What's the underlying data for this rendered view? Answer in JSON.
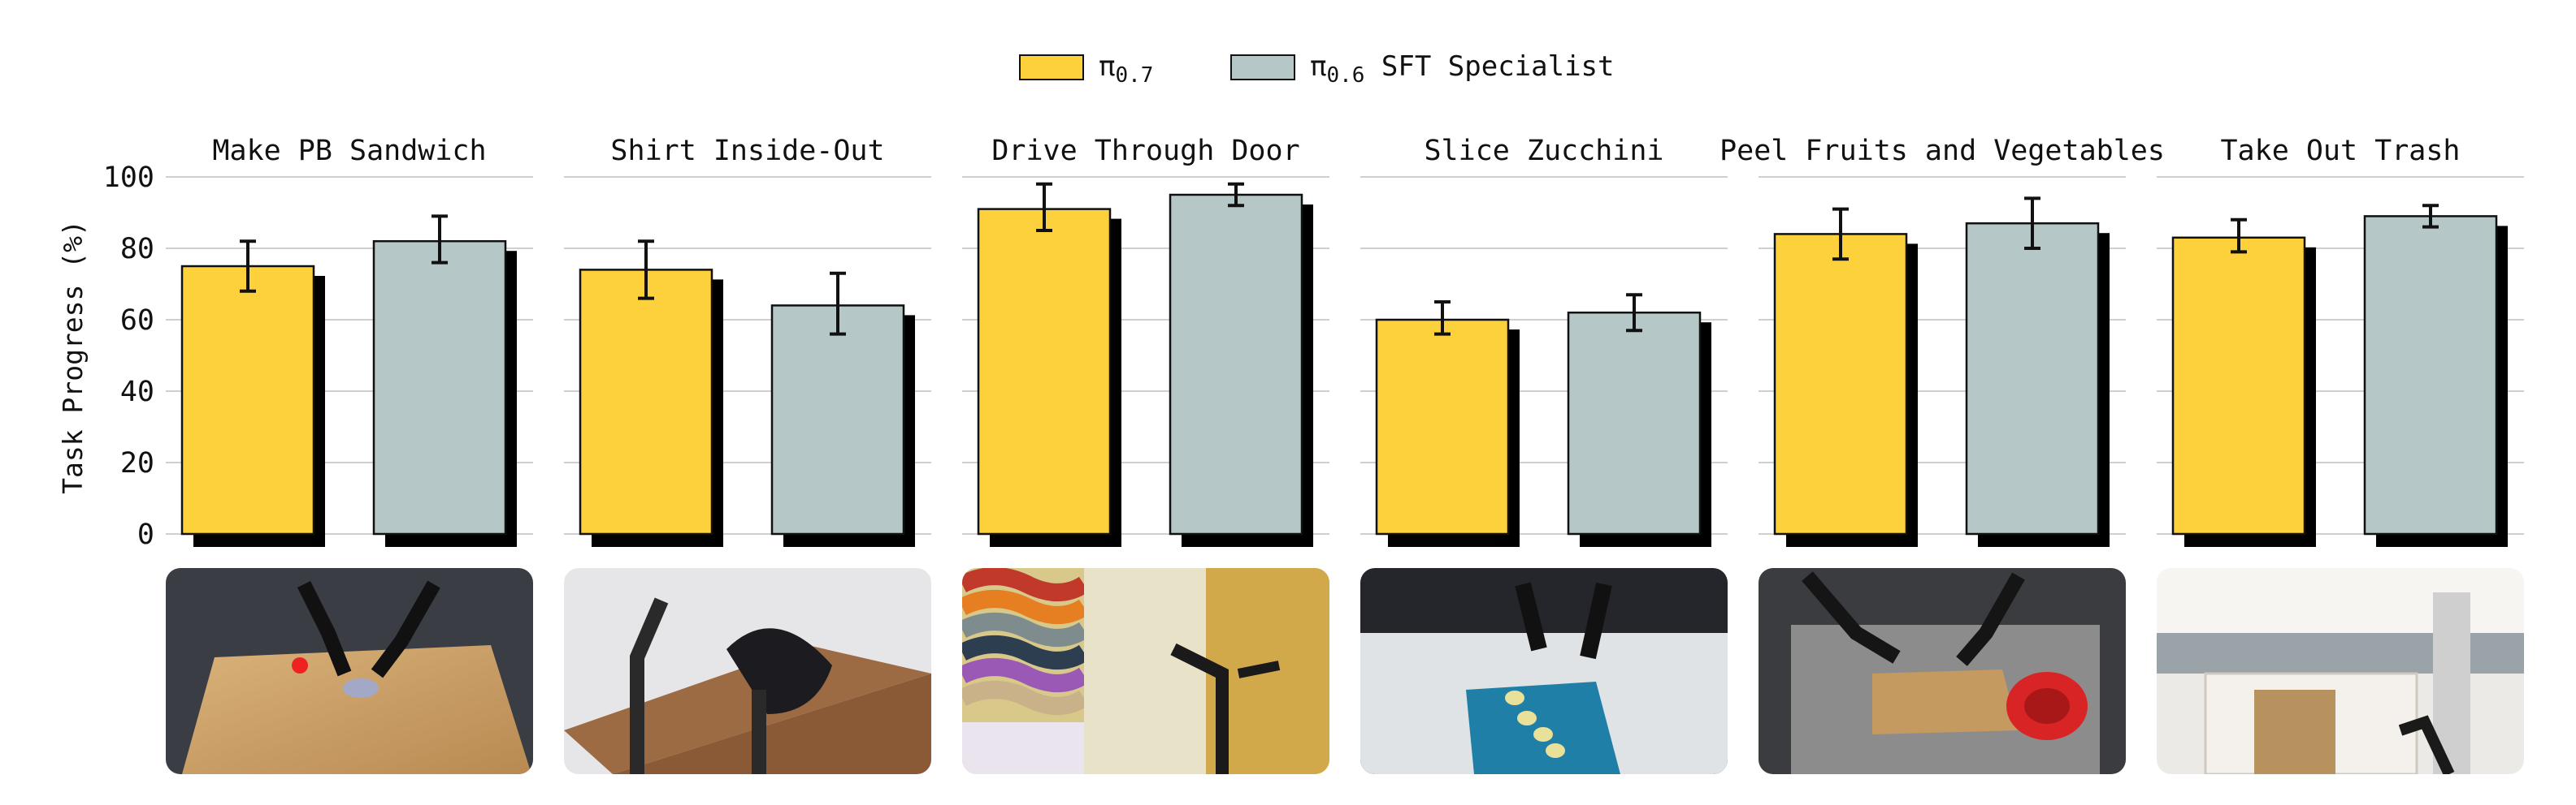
{
  "chart_data": {
    "type": "bar",
    "ylabel": "Task Progress (%)",
    "ylim": [
      0,
      100
    ],
    "yticks": [
      0,
      20,
      40,
      60,
      80,
      100
    ],
    "grid": true,
    "legend_position": "top-center",
    "legend": [
      {
        "symbol": "π",
        "subscript": "0.7",
        "suffix": "",
        "color": "#FDD13B"
      },
      {
        "symbol": "π",
        "subscript": "0.6",
        "suffix": " SFT Specialist",
        "color": "#B5C7C6"
      }
    ],
    "series": [
      {
        "key": "pi07",
        "color": "#FDD13B"
      },
      {
        "key": "pi06",
        "color": "#B5C7C6"
      }
    ],
    "panels": [
      {
        "title": "Make PB Sandwich",
        "values": [
          75,
          82
        ],
        "errors": [
          [
            68,
            82
          ],
          [
            76,
            89
          ]
        ],
        "photo": "robot-arms-sandwich-table"
      },
      {
        "title": "Shirt Inside-Out",
        "values": [
          74,
          64
        ],
        "errors": [
          [
            66,
            82
          ],
          [
            56,
            73
          ]
        ],
        "photo": "robot-arm-shirt-table"
      },
      {
        "title": "Drive Through Door",
        "values": [
          91,
          95
        ],
        "errors": [
          [
            85,
            98
          ],
          [
            92,
            98
          ]
        ],
        "photo": "mobile-robot-doorway"
      },
      {
        "title": "Slice Zucchini",
        "values": [
          60,
          62
        ],
        "errors": [
          [
            56,
            65
          ],
          [
            57,
            67
          ]
        ],
        "photo": "robot-slicing-zucchini"
      },
      {
        "title": "Peel Fruits and Vegetables",
        "values": [
          84,
          87
        ],
        "errors": [
          [
            77,
            91
          ],
          [
            80,
            94
          ]
        ],
        "photo": "robot-peeling-bowl"
      },
      {
        "title": "Take Out Trash",
        "values": [
          83,
          89
        ],
        "errors": [
          [
            79,
            88
          ],
          [
            86,
            92
          ]
        ],
        "photo": "mobile-robot-kitchen-trash"
      }
    ]
  }
}
